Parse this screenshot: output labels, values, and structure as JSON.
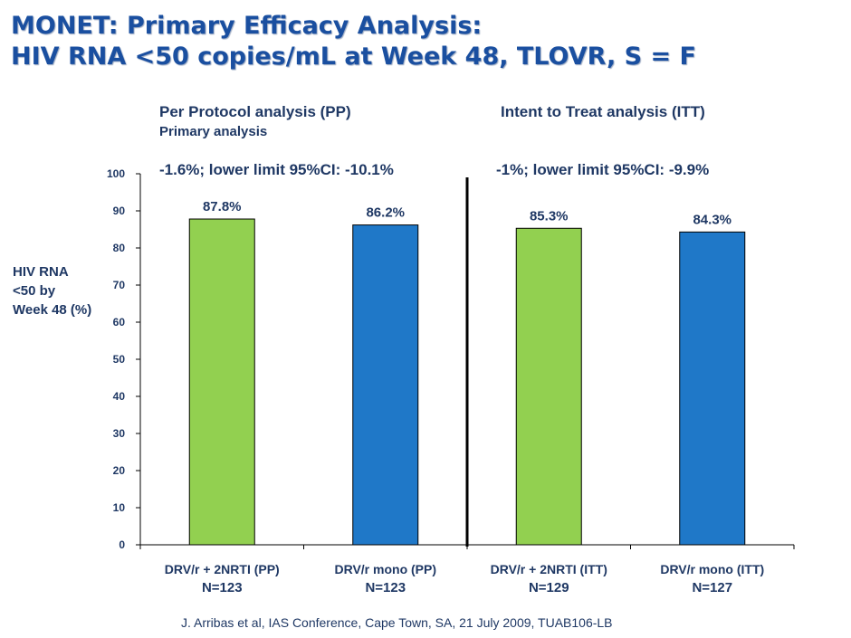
{
  "title": {
    "line1": "MONET: Primary Efficacy Analysis:",
    "line2": "HIV RNA <50 copies/mL at Week 48, TLOVR, S = F"
  },
  "sections": {
    "pp": {
      "title": "Per Protocol analysis (PP)",
      "subtitle": "Primary analysis",
      "stat": "-1.6%; lower limit 95%CI: -10.1%"
    },
    "itt": {
      "title": "Intent to Treat analysis (ITT)",
      "stat": "-1%; lower limit 95%CI: -9.9%"
    }
  },
  "citation": "J. Arribas et al, IAS Conference, Cape Town, SA, 21 July 2009, TUAB106-LB",
  "colors": {
    "green": "#92d050",
    "blue": "#1f78c8",
    "text": "#1f3864",
    "title": "#1a4fa0"
  },
  "chart_data": {
    "type": "bar",
    "ylabel": "HIV RNA <50 by Week 48 (%)",
    "ylim": [
      0,
      100
    ],
    "yticks": [
      0,
      10,
      20,
      30,
      40,
      50,
      60,
      70,
      80,
      90,
      100
    ],
    "grid": false,
    "categories": [
      "DRV/r + 2NRTI (PP)",
      "DRV/r mono (PP)",
      "DRV/r + 2NRTI (ITT)",
      "DRV/r mono (ITT)"
    ],
    "n_labels": [
      "N=123",
      "N=123",
      "N=129",
      "N=127"
    ],
    "values": [
      87.8,
      86.2,
      85.3,
      84.3
    ],
    "value_labels": [
      "87.8%",
      "86.2%",
      "85.3%",
      "84.3%"
    ],
    "bar_colors": [
      "#92d050",
      "#1f78c8",
      "#92d050",
      "#1f78c8"
    ],
    "divider_between": [
      2,
      3
    ]
  }
}
